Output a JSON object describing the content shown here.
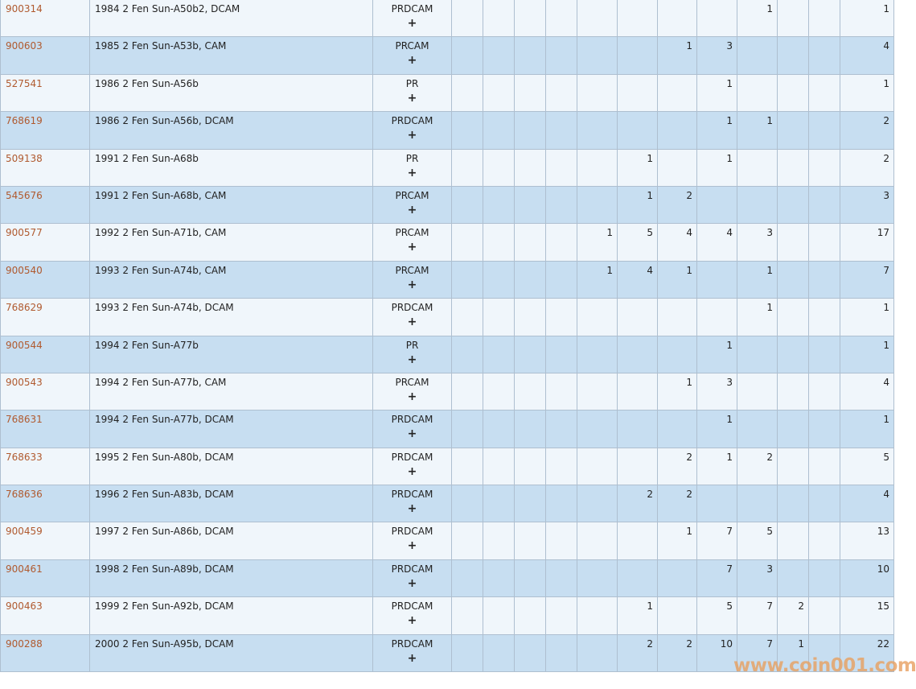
{
  "watermark": "www.coin001.com",
  "colors": {
    "row_light": "#f0f6fb",
    "row_dark": "#c7def1",
    "link": "#b05a2f",
    "border": "#aebfd0"
  },
  "plus_label": "+",
  "rows": [
    {
      "id": "900314",
      "desc": "1984 2 Fen Sun-A50b2, DCAM",
      "type": "PRDCAM",
      "grades": [
        "",
        "",
        "",
        "",
        "",
        "",
        "",
        "",
        "1",
        "",
        ""
      ],
      "total": "1"
    },
    {
      "id": "900603",
      "desc": "1985 2 Fen Sun-A53b, CAM",
      "type": "PRCAM",
      "grades": [
        "",
        "",
        "",
        "",
        "",
        "",
        "1",
        "3",
        "",
        "",
        ""
      ],
      "total": "4"
    },
    {
      "id": "527541",
      "desc": "1986 2 Fen Sun-A56b",
      "type": "PR",
      "grades": [
        "",
        "",
        "",
        "",
        "",
        "",
        "",
        "1",
        "",
        "",
        ""
      ],
      "total": "1"
    },
    {
      "id": "768619",
      "desc": "1986 2 Fen Sun-A56b, DCAM",
      "type": "PRDCAM",
      "grades": [
        "",
        "",
        "",
        "",
        "",
        "",
        "",
        "1",
        "1",
        "",
        ""
      ],
      "total": "2"
    },
    {
      "id": "509138",
      "desc": "1991 2 Fen Sun-A68b",
      "type": "PR",
      "grades": [
        "",
        "",
        "",
        "",
        "",
        "1",
        "",
        "1",
        "",
        "",
        ""
      ],
      "total": "2"
    },
    {
      "id": "545676",
      "desc": "1991 2 Fen Sun-A68b, CAM",
      "type": "PRCAM",
      "grades": [
        "",
        "",
        "",
        "",
        "",
        "1",
        "2",
        "",
        "",
        "",
        ""
      ],
      "total": "3"
    },
    {
      "id": "900577",
      "desc": "1992 2 Fen Sun-A71b, CAM",
      "type": "PRCAM",
      "grades": [
        "",
        "",
        "",
        "",
        "1",
        "5",
        "4",
        "4",
        "3",
        "",
        ""
      ],
      "total": "17"
    },
    {
      "id": "900540",
      "desc": "1993 2 Fen Sun-A74b, CAM",
      "type": "PRCAM",
      "grades": [
        "",
        "",
        "",
        "",
        "1",
        "4",
        "1",
        "",
        "1",
        "",
        ""
      ],
      "total": "7"
    },
    {
      "id": "768629",
      "desc": "1993 2 Fen Sun-A74b, DCAM",
      "type": "PRDCAM",
      "grades": [
        "",
        "",
        "",
        "",
        "",
        "",
        "",
        "",
        "1",
        "",
        ""
      ],
      "total": "1"
    },
    {
      "id": "900544",
      "desc": "1994 2 Fen Sun-A77b",
      "type": "PR",
      "grades": [
        "",
        "",
        "",
        "",
        "",
        "",
        "",
        "1",
        "",
        "",
        ""
      ],
      "total": "1"
    },
    {
      "id": "900543",
      "desc": "1994 2 Fen Sun-A77b, CAM",
      "type": "PRCAM",
      "grades": [
        "",
        "",
        "",
        "",
        "",
        "",
        "1",
        "3",
        "",
        "",
        ""
      ],
      "total": "4"
    },
    {
      "id": "768631",
      "desc": "1994 2 Fen Sun-A77b, DCAM",
      "type": "PRDCAM",
      "grades": [
        "",
        "",
        "",
        "",
        "",
        "",
        "",
        "1",
        "",
        "",
        ""
      ],
      "total": "1"
    },
    {
      "id": "768633",
      "desc": "1995 2 Fen Sun-A80b, DCAM",
      "type": "PRDCAM",
      "grades": [
        "",
        "",
        "",
        "",
        "",
        "",
        "2",
        "1",
        "2",
        "",
        ""
      ],
      "total": "5"
    },
    {
      "id": "768636",
      "desc": "1996 2 Fen Sun-A83b, DCAM",
      "type": "PRDCAM",
      "grades": [
        "",
        "",
        "",
        "",
        "",
        "2",
        "2",
        "",
        "",
        "",
        ""
      ],
      "total": "4"
    },
    {
      "id": "900459",
      "desc": "1997 2 Fen Sun-A86b, DCAM",
      "type": "PRDCAM",
      "grades": [
        "",
        "",
        "",
        "",
        "",
        "",
        "1",
        "7",
        "5",
        "",
        ""
      ],
      "total": "13"
    },
    {
      "id": "900461",
      "desc": "1998 2 Fen Sun-A89b, DCAM",
      "type": "PRDCAM",
      "grades": [
        "",
        "",
        "",
        "",
        "",
        "",
        "",
        "7",
        "3",
        "",
        ""
      ],
      "total": "10"
    },
    {
      "id": "900463",
      "desc": "1999 2 Fen Sun-A92b, DCAM",
      "type": "PRDCAM",
      "grades": [
        "",
        "",
        "",
        "",
        "",
        "1",
        "",
        "5",
        "7",
        "2",
        ""
      ],
      "total": "15"
    },
    {
      "id": "900288",
      "desc": "2000 2 Fen Sun-A95b, DCAM",
      "type": "PRDCAM",
      "grades": [
        "",
        "",
        "",
        "",
        "",
        "2",
        "2",
        "10",
        "7",
        "1",
        ""
      ],
      "total": "22"
    }
  ]
}
